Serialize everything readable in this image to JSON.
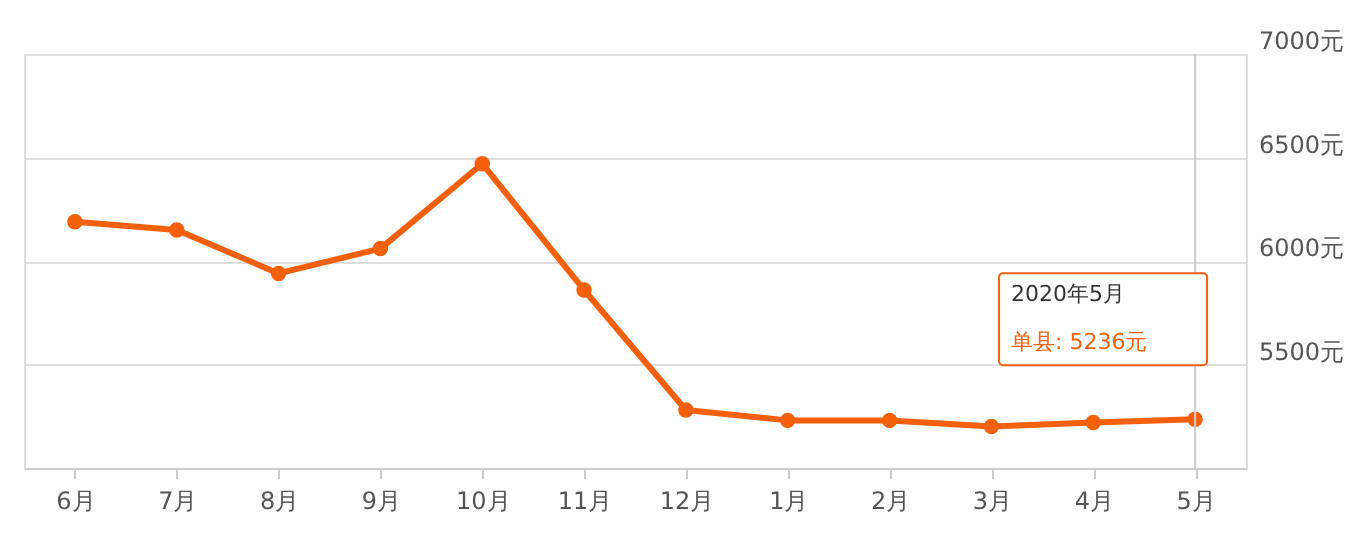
{
  "chart_data": {
    "type": "line",
    "categories": [
      "6月",
      "7月",
      "8月",
      "9月",
      "10月",
      "11月",
      "12月",
      "1月",
      "2月",
      "3月",
      "4月",
      "5月"
    ],
    "series": [
      {
        "color": "#f5600c",
        "values": [
          6190,
          6150,
          5940,
          6060,
          6470,
          5860,
          5280,
          5230,
          5230,
          5200,
          5220,
          5236
        ]
      }
    ],
    "ylim": [
      5000,
      7000
    ],
    "yticks": [
      {
        "value": 5500,
        "label": "5500元"
      },
      {
        "value": 6000,
        "label": "6000元"
      },
      {
        "value": 6500,
        "label": "6500元"
      },
      {
        "value": 7000,
        "label": "7000元"
      }
    ],
    "grid": "y",
    "marker": "circle",
    "line_style": "solid",
    "ref_lines": [
      {
        "axis": "x",
        "value": "5月",
        "color": "#cccccc"
      }
    ],
    "annotations": [
      "2020年5月",
      "单县:  5236元"
    ]
  }
}
